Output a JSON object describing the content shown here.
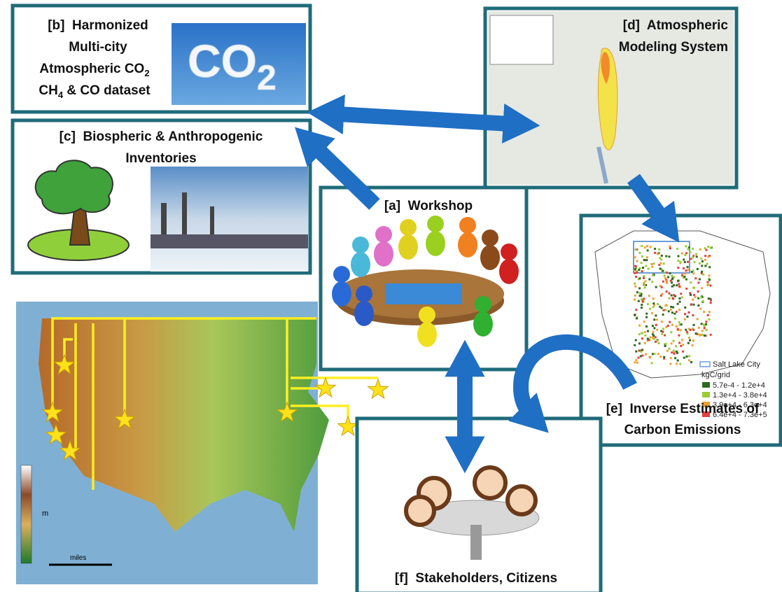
{
  "panels": {
    "b": {
      "line1": "[b]  Harmonized",
      "line2": "Multi-city",
      "line3": "Atmospheric CO",
      "line3_sub": "2",
      "line4": "CH",
      "line4_sub": "4",
      "line4_end": " & CO dataset",
      "image_text": "CO",
      "image_sub": "2"
    },
    "c": {
      "line1": "[c]  Biospheric & Anthropogenic",
      "line2": "Inventories"
    },
    "d": {
      "line1": "[d]  Atmospheric",
      "line2": "Modeling System"
    },
    "a": {
      "title": "[a]  Workshop"
    },
    "e": {
      "line1": "[e]  Inverse Estimates of",
      "line2": "Carbon Emissions",
      "legend": {
        "boundary": "Salt Lake City",
        "unit": "kgC/grid",
        "classes": [
          "5.7e-4 - 1.2e+4",
          "1.3e+4 - 3.8e+4",
          "3.9e+4 - 6.3e+4",
          "6.4e+4 - 7.3e+5"
        ]
      }
    },
    "f": {
      "title": "[f]  Stakeholders, Citizens"
    },
    "map": {
      "elevation_unit": "m",
      "scale_unit": "miles"
    }
  }
}
